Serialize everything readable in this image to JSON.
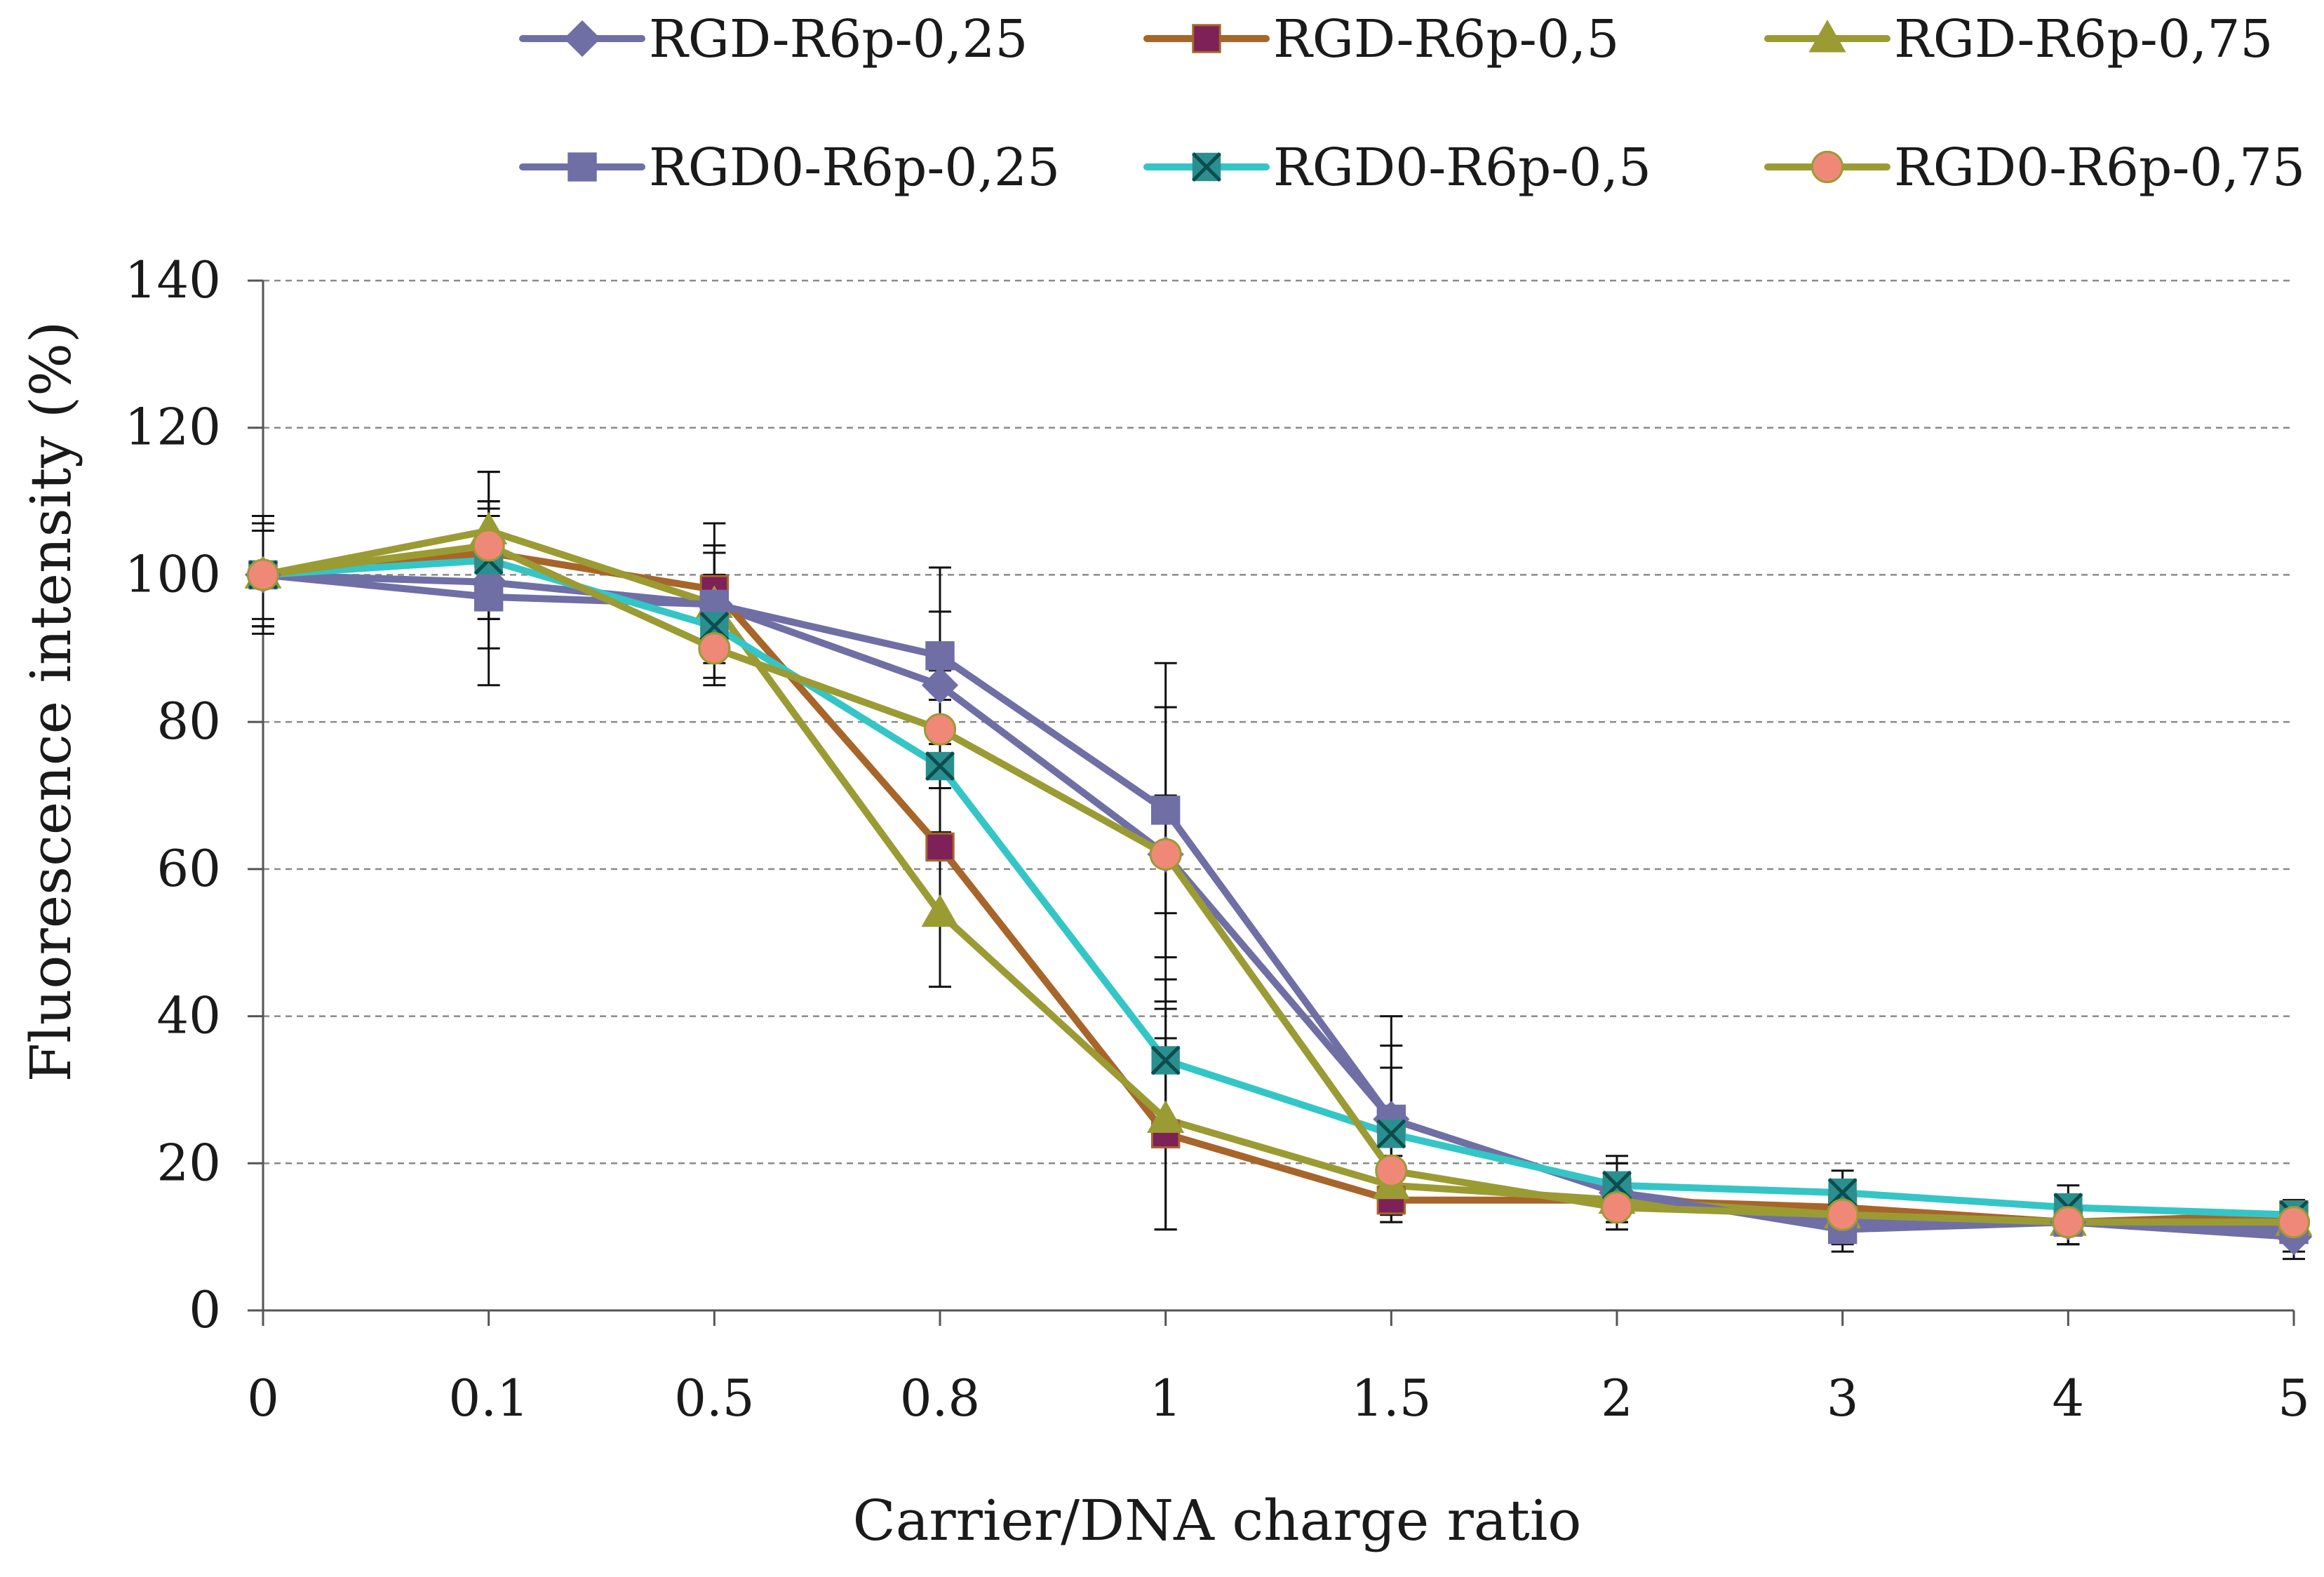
{
  "chart_data": {
    "type": "line",
    "title": "",
    "xlabel": "Carrier/DNA charge ratio",
    "ylabel": "Fluorescence intensity (%)",
    "categories": [
      "0",
      "0.1",
      "0.5",
      "0.8",
      "1",
      "1.5",
      "2",
      "3",
      "4",
      "5"
    ],
    "ylim": [
      0,
      140
    ],
    "yticks": [
      "0",
      "20",
      "40",
      "60",
      "80",
      "100",
      "120",
      "140"
    ],
    "grid": true,
    "legend_position": "top",
    "series": [
      {
        "name": "RGD-R6p-0,25",
        "color": "#6f6fa6",
        "marker": "diamond",
        "values": [
          100,
          99,
          96,
          85,
          62,
          26,
          16,
          12,
          12,
          10
        ],
        "errors": [
          7,
          9,
          7,
          10,
          20,
          10,
          4,
          3,
          3,
          3
        ]
      },
      {
        "name": "RGD-R6p-0,5",
        "color": "#a8652a",
        "markerColor": "#7d2158",
        "marker": "square",
        "values": [
          100,
          103,
          98,
          63,
          24,
          15,
          15,
          14,
          12,
          13
        ],
        "errors": [
          6,
          7,
          9,
          10,
          13,
          3,
          3,
          3,
          3,
          2
        ]
      },
      {
        "name": "RGD-R6p-0,75",
        "color": "#9b9b34",
        "marker": "triangle",
        "values": [
          100,
          106,
          96,
          54,
          26,
          17,
          15,
          13,
          12,
          12
        ],
        "errors": [
          7,
          8,
          7,
          10,
          15,
          4,
          3,
          3,
          3,
          2
        ]
      },
      {
        "name": "RGD0-R6p-0,25",
        "color": "#6f6fa6",
        "marker": "square",
        "values": [
          100,
          97,
          96,
          89,
          68,
          26,
          16,
          11,
          12,
          11
        ],
        "errors": [
          8,
          12,
          8,
          12,
          20,
          14,
          5,
          3,
          3,
          3
        ]
      },
      {
        "name": "RGD0-R6p-0,5",
        "color": "#34c6c6",
        "markerColor": "#2a8f8f",
        "marker": "star",
        "values": [
          100,
          102,
          93,
          74,
          34,
          24,
          17,
          16,
          14,
          13
        ],
        "errors": [
          7,
          8,
          7,
          9,
          11,
          9,
          3,
          3,
          3,
          2
        ]
      },
      {
        "name": "RGD0-R6p-0,75",
        "color": "#9b9b34",
        "markerColor": "#f08878",
        "marker": "circle",
        "values": [
          100,
          104,
          90,
          79,
          62,
          19,
          14,
          13,
          12,
          12
        ],
        "errors": [
          7,
          10,
          5,
          8,
          8,
          6,
          3,
          3,
          3,
          2
        ]
      }
    ]
  }
}
